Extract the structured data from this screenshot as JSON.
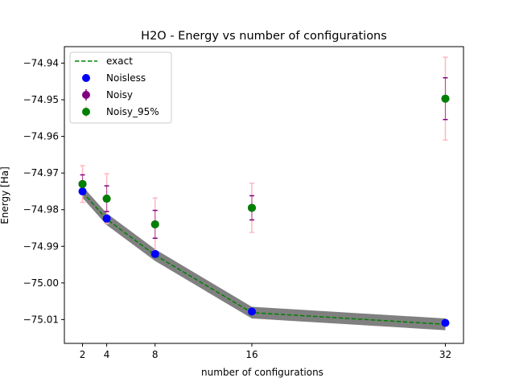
{
  "chart_data": {
    "type": "scatter",
    "title": "H2O - Energy vs number of configurations",
    "xlabel": "number of configurations",
    "ylabel": "Energy [Ha]",
    "x": [
      2,
      4,
      8,
      16,
      32
    ],
    "xticks": [
      2,
      4,
      8,
      16,
      32
    ],
    "yticks": [
      -74.94,
      -74.95,
      -74.96,
      -74.97,
      -74.98,
      -74.99,
      -75.0,
      -75.01
    ],
    "ytick_labels": [
      "−74.94",
      "−74.95",
      "−74.96",
      "−74.97",
      "−74.98",
      "−74.99",
      "−75.00",
      "−75.01"
    ],
    "xlim": [
      0.5,
      33.5
    ],
    "ylim": [
      -75.0165,
      -74.9355
    ],
    "grid": false,
    "legend_position": "upper-left",
    "chemical_accuracy_band": {
      "color": "#808080",
      "half_width": 0.0016
    },
    "series": [
      {
        "name": "exact",
        "kind": "line",
        "style": "dashed",
        "color": "#008000",
        "values": [
          -74.9752,
          -74.9826,
          -74.9924,
          -75.0081,
          -75.0113
        ]
      },
      {
        "name": "Noisless",
        "kind": "points",
        "color": "#0000ff",
        "values": [
          -74.975,
          -74.9824,
          -74.9921,
          -75.0078,
          -75.0109
        ]
      },
      {
        "name": "Noisy",
        "kind": "errorbar",
        "color": "#800080",
        "values": [
          -74.973,
          -74.977,
          -74.984,
          -74.9795,
          -74.9497
        ],
        "errors": [
          0.0025,
          0.0035,
          0.0038,
          0.0033,
          0.0057
        ]
      },
      {
        "name": "Noisy_95%",
        "kind": "errorbar",
        "color": "#008000",
        "errbar_color": "#ffb6c1",
        "values": [
          -74.973,
          -74.977,
          -74.984,
          -74.9795,
          -74.9497
        ],
        "errors": [
          0.005,
          0.0068,
          0.0072,
          0.0067,
          0.0113
        ]
      }
    ]
  }
}
